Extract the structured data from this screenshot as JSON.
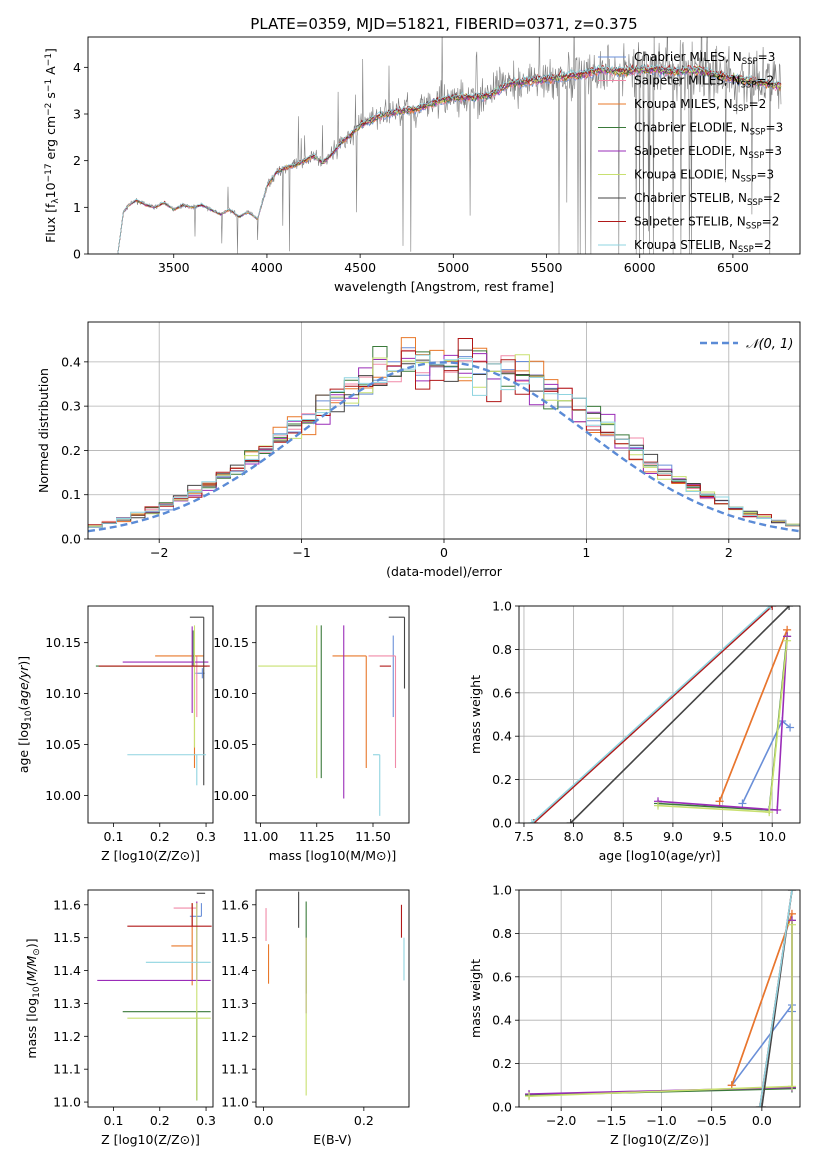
{
  "figure_title": "PLATE=0359, MJD=51821, FIBERID=0371, z=0.375",
  "colors": {
    "Chabrier MILES": "#6a8fd8",
    "Salpeter MILES": "#f08aa8",
    "Kroupa MILES": "#e8782a",
    "Chabrier ELODIE": "#3a7a3a",
    "Salpeter ELODIE": "#9a2cb8",
    "Kroupa ELODIE": "#c8e070",
    "Chabrier STELIB": "#444444",
    "Salpeter STELIB": "#b01818",
    "Kroupa STELIB": "#8fd4e0",
    "data": "#808080",
    "normal": "#5b8bd6"
  },
  "chart_data": [
    {
      "id": "spectrum",
      "type": "line",
      "title": "PLATE=0359, MJD=51821, FIBERID=0371, z=0.375",
      "xlabel": "wavelength [Angstrom, rest frame]",
      "ylabel": "Flux [f_λ 10^-17 erg cm^-2 s^-1 A^-1]",
      "xlim": [
        3040,
        6860
      ],
      "ylim": [
        0,
        4.65
      ],
      "xticks": [
        3500,
        4000,
        4500,
        5000,
        5500,
        6000,
        6500
      ],
      "yticks": [
        0,
        1,
        2,
        3,
        4
      ],
      "legend": "top-right",
      "series": [
        {
          "name": "Chabrier MILES",
          "nssp": "3"
        },
        {
          "name": "Salpeter MILES",
          "nssp": "2"
        },
        {
          "name": "Kroupa MILES",
          "nssp": "2"
        },
        {
          "name": "Chabrier ELODIE",
          "nssp": "3"
        },
        {
          "name": "Salpeter ELODIE",
          "nssp": "3"
        },
        {
          "name": "Kroupa ELODIE",
          "nssp": "3"
        },
        {
          "name": "Chabrier STELIB",
          "nssp": "2"
        },
        {
          "name": "Salpeter STELIB",
          "nssp": "2"
        },
        {
          "name": "Kroupa STELIB",
          "nssp": "2"
        }
      ],
      "model_continuum": {
        "x": [
          3200,
          3230,
          3260,
          3300,
          3350,
          3400,
          3450,
          3500,
          3550,
          3600,
          3650,
          3700,
          3750,
          3800,
          3850,
          3900,
          3950,
          4000,
          4050,
          4100,
          4150,
          4200,
          4250,
          4300,
          4350,
          4400,
          4450,
          4500,
          4600,
          4700,
          4800,
          4900,
          5000,
          5100,
          5200,
          5300,
          5400,
          5500,
          5600,
          5700,
          5800,
          5900,
          6000,
          6100,
          6200,
          6300,
          6400,
          6500,
          6600,
          6750
        ],
        "y": [
          0,
          0.9,
          1.05,
          1.15,
          1.05,
          1.0,
          1.1,
          0.95,
          1.05,
          1.0,
          1.05,
          0.95,
          0.85,
          0.95,
          0.8,
          0.9,
          0.75,
          1.45,
          1.75,
          1.85,
          1.9,
          2.0,
          2.1,
          1.95,
          2.15,
          2.4,
          2.55,
          2.75,
          2.95,
          3.05,
          3.1,
          3.25,
          3.35,
          3.35,
          3.4,
          3.65,
          3.7,
          3.75,
          3.8,
          3.85,
          3.95,
          3.9,
          3.95,
          3.95,
          3.9,
          3.95,
          3.85,
          3.75,
          3.7,
          3.6
        ]
      }
    },
    {
      "id": "residuals",
      "type": "line",
      "xlabel": "(data-model)/error",
      "ylabel": "Normed distribution",
      "xlim": [
        -2.5,
        2.5
      ],
      "ylim": [
        0,
        0.49
      ],
      "xticks": [
        -2,
        -1,
        0,
        1,
        2
      ],
      "yticks": [
        0.0,
        0.1,
        0.2,
        0.3,
        0.4
      ],
      "grid": true,
      "legend": "top-right",
      "normal_label": "𝒩(0, 1)",
      "bin_width": 0.1
    },
    {
      "id": "age_vs_Z",
      "type": "scatter",
      "xlabel": "Z [log10(Z/Z⊙)]",
      "ylabel": "age  [log10(age/yr)]",
      "xlim": [
        0.045,
        0.315
      ],
      "ylim": [
        9.973,
        10.186
      ],
      "xticks": [
        0.1,
        0.2,
        0.3
      ],
      "yticks": [
        10.0,
        10.05,
        10.1,
        10.15
      ],
      "points": [
        {
          "x": 0.292,
          "y": 10.12,
          "xerr": [
            0.015,
            0.005
          ],
          "yerr": [
            0.005,
            0.005
          ]
        },
        {
          "x": 0.28,
          "y": 10.137,
          "xerr": [
            0.0,
            0.0
          ],
          "yerr": [
            0.06,
            0.0
          ]
        },
        {
          "x": 0.275,
          "y": 10.137,
          "xerr": [
            0.085,
            0.02
          ],
          "yerr": [
            0.11,
            0.0
          ]
        },
        {
          "x": 0.272,
          "y": 10.127,
          "xerr": [
            0.21,
            0.03
          ],
          "yerr": [
            0.0,
            0.035
          ]
        },
        {
          "x": 0.27,
          "y": 10.131,
          "xerr": [
            0.15,
            0.035
          ],
          "yerr": [
            0.05,
            0.035
          ]
        },
        {
          "x": 0.275,
          "y": 10.127,
          "xerr": [
            0.205,
            0.025
          ],
          "yerr": [
            0.08,
            0.04
          ]
        },
        {
          "x": 0.295,
          "y": 10.175,
          "xerr": [
            0.03,
            0.0
          ],
          "yerr": [
            0.165,
            0.0
          ]
        },
        {
          "x": 0.268,
          "y": 10.127,
          "xerr": [
            0.2,
            0.04
          ],
          "yerr": [
            0.0,
            0.0
          ]
        },
        {
          "x": 0.28,
          "y": 10.04,
          "xerr": [
            0.15,
            0.02
          ],
          "yerr": [
            0.03,
            0.0
          ]
        }
      ]
    },
    {
      "id": "age_vs_mass",
      "type": "scatter",
      "xlabel": "mass [log10(M/M⊙)]",
      "ylabel": "",
      "xlim": [
        10.98,
        11.66
      ],
      "ylim": [
        9.973,
        10.186
      ],
      "xticks": [
        11.0,
        11.25,
        11.5
      ],
      "yticks": [
        10.0,
        10.05,
        10.1,
        10.15
      ],
      "points": [
        {
          "x": 11.59,
          "y": 10.137,
          "xerr": [
            0.0,
            0.0
          ],
          "yerr": [
            0.06,
            0.02
          ]
        },
        {
          "x": 11.6,
          "y": 10.137,
          "xerr": [
            0.12,
            0.0
          ],
          "yerr": [
            0.11,
            0.0
          ]
        },
        {
          "x": 11.47,
          "y": 10.137,
          "xerr": [
            0.15,
            0.0
          ],
          "yerr": [
            0.11,
            0.0
          ]
        },
        {
          "x": 11.27,
          "y": 10.127,
          "xerr": [
            0.0,
            0.0
          ],
          "yerr": [
            0.11,
            0.04
          ]
        },
        {
          "x": 11.37,
          "y": 10.127,
          "xerr": [
            0.0,
            0.0
          ],
          "yerr": [
            0.13,
            0.04
          ]
        },
        {
          "x": 11.25,
          "y": 10.127,
          "xerr": [
            0.26,
            0.0
          ],
          "yerr": [
            0.11,
            0.04
          ]
        },
        {
          "x": 11.64,
          "y": 10.175,
          "xerr": [
            0.07,
            0.0
          ],
          "yerr": [
            0.07,
            0.0
          ]
        },
        {
          "x": 11.53,
          "y": 10.127,
          "xerr": [
            0.0,
            0.05
          ],
          "yerr": [
            0.0,
            0.0
          ]
        },
        {
          "x": 11.53,
          "y": 10.04,
          "xerr": [
            0.03,
            0.0
          ],
          "yerr": [
            0.06,
            0.0
          ]
        }
      ]
    },
    {
      "id": "weights_vs_age",
      "type": "line",
      "xlabel": "age  [log10(age/yr)]",
      "ylabel": "mass weight",
      "xlim": [
        7.45,
        10.28
      ],
      "ylim": [
        0,
        1.0
      ],
      "xticks": [
        7.5,
        8.0,
        8.5,
        9.0,
        9.5,
        10.0
      ],
      "yticks": [
        0.0,
        0.2,
        0.4,
        0.6,
        0.8,
        1.0
      ],
      "grid": true,
      "series": [
        {
          "name": "Chabrier MILES",
          "x": [
            9.7,
            10.1,
            10.18
          ],
          "y": [
            0.09,
            0.47,
            0.44
          ]
        },
        {
          "name": "Salpeter MILES",
          "x": [
            9.47,
            10.15
          ],
          "y": [
            0.1,
            0.89
          ]
        },
        {
          "name": "Kroupa MILES",
          "x": [
            9.47,
            10.15
          ],
          "y": [
            0.1,
            0.89
          ]
        },
        {
          "name": "Chabrier ELODIE",
          "x": [
            8.85,
            9.97,
            10.15
          ],
          "y": [
            0.09,
            0.06,
            0.86
          ]
        },
        {
          "name": "Salpeter ELODIE",
          "x": [
            8.85,
            10.05,
            10.15
          ],
          "y": [
            0.1,
            0.06,
            0.86
          ]
        },
        {
          "name": "Kroupa ELODIE",
          "x": [
            8.85,
            9.97,
            10.15
          ],
          "y": [
            0.08,
            0.05,
            0.84
          ]
        },
        {
          "name": "Chabrier STELIB",
          "x": [
            7.97,
            10.17
          ],
          "y": [
            0.0,
            1.0
          ]
        },
        {
          "name": "Salpeter STELIB",
          "x": [
            7.6,
            10.0
          ],
          "y": [
            0.0,
            1.0
          ]
        },
        {
          "name": "Kroupa STELIB",
          "x": [
            7.58,
            9.98
          ],
          "y": [
            0.0,
            1.0
          ]
        }
      ]
    },
    {
      "id": "mass_vs_Z",
      "type": "scatter",
      "xlabel": "Z [log10(Z/Z⊙)]",
      "ylabel": "mass [log10(M/M⊙)]",
      "xlim": [
        0.045,
        0.315
      ],
      "ylim": [
        10.985,
        11.645
      ],
      "xticks": [
        0.1,
        0.2,
        0.3
      ],
      "yticks": [
        11.0,
        11.1,
        11.2,
        11.3,
        11.4,
        11.5,
        11.6
      ],
      "points": [
        {
          "x": 0.29,
          "y": 11.565,
          "xerr": [
            0.025,
            0.0
          ],
          "yerr": [
            0.0,
            0.04
          ]
        },
        {
          "x": 0.28,
          "y": 11.59,
          "xerr": [
            0.05,
            0.0
          ],
          "yerr": [
            0.0,
            0.02
          ]
        },
        {
          "x": 0.27,
          "y": 11.475,
          "xerr": [
            0.045,
            0.0
          ],
          "yerr": [
            0.12,
            0.13
          ]
        },
        {
          "x": 0.28,
          "y": 11.275,
          "xerr": [
            0.16,
            0.03
          ],
          "yerr": [
            0.27,
            0.0
          ]
        },
        {
          "x": 0.28,
          "y": 11.37,
          "xerr": [
            0.215,
            0.03
          ],
          "yerr": [
            0.0,
            0.24
          ]
        },
        {
          "x": 0.28,
          "y": 11.255,
          "xerr": [
            0.15,
            0.03
          ],
          "yerr": [
            0.25,
            0.35
          ]
        },
        {
          "x": 0.298,
          "y": 11.635,
          "xerr": [
            0.018,
            0.0
          ],
          "yerr": [
            0.0,
            0.0
          ]
        },
        {
          "x": 0.27,
          "y": 11.535,
          "xerr": [
            0.14,
            0.042
          ],
          "yerr": [
            0.0,
            0.07
          ]
        },
        {
          "x": 0.28,
          "y": 11.425,
          "xerr": [
            0.11,
            0.03
          ],
          "yerr": [
            0.0,
            0.0
          ]
        }
      ]
    },
    {
      "id": "mass_vs_EBV",
      "type": "scatter",
      "xlabel": "E(B-V)",
      "ylabel": "",
      "xlim": [
        -0.015,
        0.29
      ],
      "ylim": [
        10.985,
        11.645
      ],
      "xticks": [
        0.0,
        0.2
      ],
      "yticks": [
        11.0,
        11.1,
        11.2,
        11.3,
        11.4,
        11.5,
        11.6
      ],
      "points": [
        {
          "x": 0.005,
          "y": 11.59,
          "yerr": [
            0.1,
            0.0
          ]
        },
        {
          "x": 0.01,
          "y": 11.48,
          "yerr": [
            0.12,
            0.0
          ]
        },
        {
          "x": 0.07,
          "y": 11.59,
          "yerr": [
            0.06,
            0.05
          ]
        },
        {
          "x": 0.085,
          "y": 11.5,
          "yerr": [
            0.17,
            0.11
          ]
        },
        {
          "x": 0.085,
          "y": 11.5,
          "yerr": [
            0.23,
            0.0
          ]
        },
        {
          "x": 0.085,
          "y": 11.2,
          "yerr": [
            0.18,
            0.3
          ]
        },
        {
          "x": 0.275,
          "y": 11.5,
          "yerr": [
            0.0,
            0.1
          ]
        },
        {
          "x": 0.28,
          "y": 11.43,
          "yerr": [
            0.06,
            0.07
          ]
        }
      ]
    },
    {
      "id": "weights_vs_Z",
      "type": "line",
      "xlabel": "Z [log10(Z/Z⊙)]",
      "ylabel": "mass weight",
      "xlim": [
        -2.42,
        0.38
      ],
      "ylim": [
        0,
        1.0
      ],
      "xticks": [
        -2.0,
        -1.5,
        -1.0,
        -0.5,
        0.0
      ],
      "yticks": [
        0.0,
        0.2,
        0.4,
        0.6,
        0.8,
        1.0
      ],
      "grid": true,
      "series": [
        {
          "name": "Chabrier MILES",
          "x": [
            -0.3,
            0.3,
            0.3
          ],
          "y": [
            0.1,
            0.47,
            0.44
          ]
        },
        {
          "name": "Salpeter MILES",
          "x": [
            -0.3,
            0.3
          ],
          "y": [
            0.1,
            0.89
          ]
        },
        {
          "name": "Kroupa MILES",
          "x": [
            -0.3,
            0.3
          ],
          "y": [
            0.1,
            0.89
          ]
        },
        {
          "name": "Chabrier ELODIE",
          "x": [
            -2.32,
            0.3,
            0.3
          ],
          "y": [
            0.055,
            0.085,
            0.86
          ]
        },
        {
          "name": "Salpeter ELODIE",
          "x": [
            -2.32,
            0.3,
            0.3
          ],
          "y": [
            0.06,
            0.09,
            0.86
          ]
        },
        {
          "name": "Kroupa ELODIE",
          "x": [
            -2.32,
            0.3,
            0.3
          ],
          "y": [
            0.05,
            0.095,
            0.84
          ]
        },
        {
          "name": "Chabrier STELIB",
          "x": [
            0.0,
            0.3
          ],
          "y": [
            0.0,
            1.0
          ]
        },
        {
          "name": "Salpeter STELIB",
          "x": [
            -0.02,
            0.3
          ],
          "y": [
            0.0,
            1.0
          ]
        },
        {
          "name": "Kroupa STELIB",
          "x": [
            -0.02,
            0.3
          ],
          "y": [
            0.0,
            1.0
          ]
        }
      ]
    }
  ]
}
